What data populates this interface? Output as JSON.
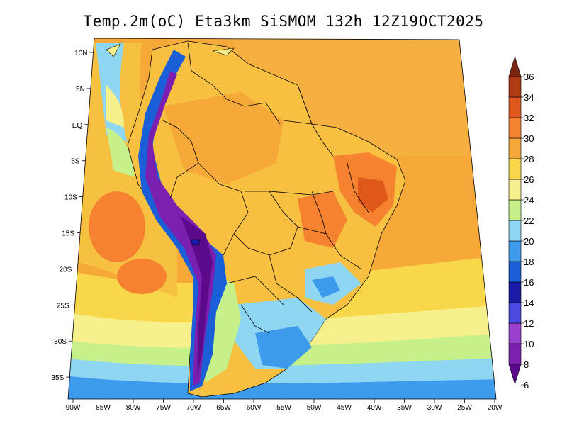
{
  "title": "Temp.2m(oC) Eta3km SiSMOM 132h 12Z19OCT2025",
  "map": {
    "variable": "2 m temperature",
    "units": "oC",
    "region": "South America",
    "lat_labels": [
      "10N",
      "5N",
      "EQ",
      "5S",
      "10S",
      "15S",
      "20S",
      "25S",
      "30S",
      "35S"
    ],
    "lon_labels": [
      "90W",
      "85W",
      "80W",
      "75W",
      "70W",
      "65W",
      "60W",
      "55W",
      "50W",
      "45W",
      "40W",
      "35W",
      "30W",
      "25W",
      "20W"
    ]
  },
  "colorbar": {
    "labels": [
      "6",
      "8",
      "10",
      "12",
      "14",
      "16",
      "18",
      "20",
      "22",
      "24",
      "26",
      "28",
      "30",
      "32",
      "34",
      "36"
    ],
    "colors": [
      "#5c0a8c",
      "#7a1fb0",
      "#9a40d0",
      "#4a4ae0",
      "#1a1aa8",
      "#1a5ed8",
      "#3d9aec",
      "#8fd6f2",
      "#c6f08a",
      "#f6f08c",
      "#f8d84a",
      "#f6a838",
      "#f4822e",
      "#e0581c",
      "#b03a14",
      "#7a2410"
    ]
  }
}
